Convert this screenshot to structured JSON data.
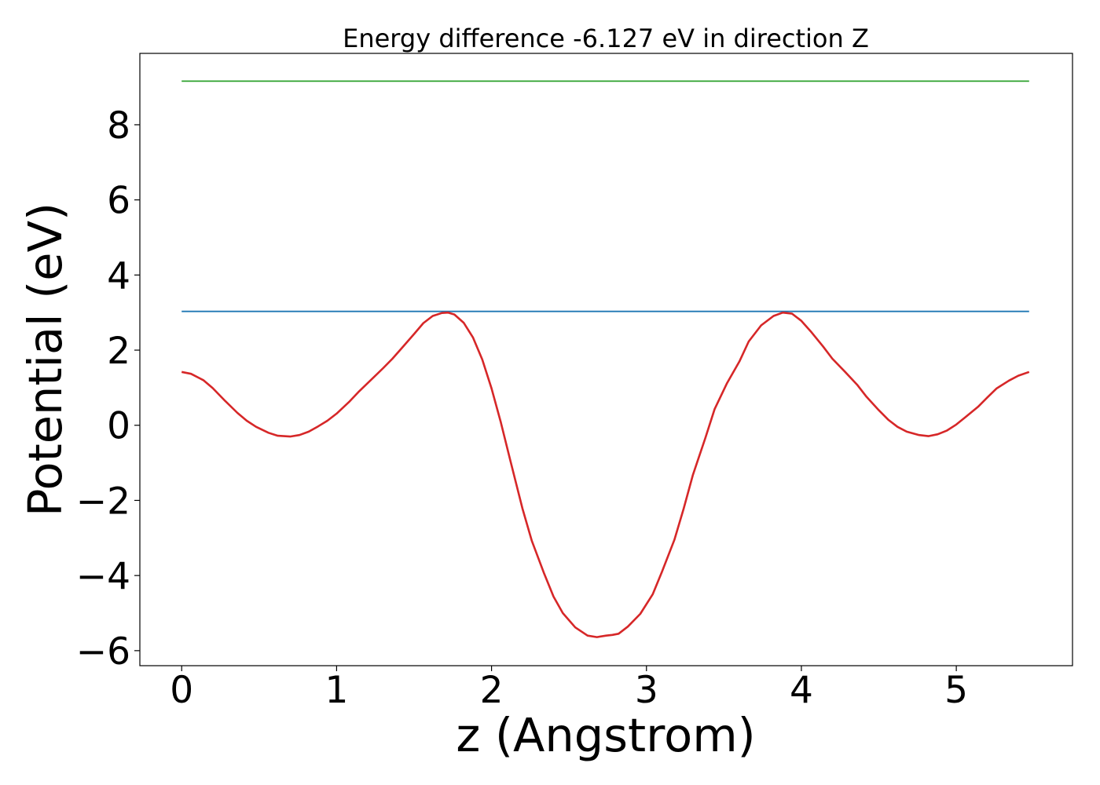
{
  "chart_data": {
    "type": "line",
    "title": "Energy difference -6.127 eV in direction Z",
    "xlabel": "z (Angstrom)",
    "ylabel": "Potential (eV)",
    "xlim": [
      -0.27,
      5.75
    ],
    "ylim": [
      -6.4,
      9.9
    ],
    "xticks": [
      0,
      1,
      2,
      3,
      4,
      5
    ],
    "xtick_labels": [
      "0",
      "1",
      "2",
      "3",
      "4",
      "5"
    ],
    "yticks": [
      -6,
      -4,
      -2,
      0,
      2,
      4,
      6,
      8
    ],
    "ytick_labels": [
      "−6",
      "−4",
      "−2",
      "0",
      "2",
      "4",
      "6",
      "8"
    ],
    "grid": false,
    "legend": "none",
    "series": [
      {
        "color": "#2ca02c",
        "x": [
          0,
          5.47
        ],
        "y": [
          9.16,
          9.16
        ]
      },
      {
        "color": "#1f77b4",
        "x": [
          0,
          5.47
        ],
        "y": [
          3.03,
          3.03
        ]
      },
      {
        "color": "#d62728",
        "x": [
          0.0,
          0.06,
          0.14,
          0.2,
          0.28,
          0.36,
          0.42,
          0.48,
          0.56,
          0.62,
          0.7,
          0.76,
          0.82,
          0.88,
          0.94,
          1.0,
          1.08,
          1.14,
          1.22,
          1.3,
          1.36,
          1.42,
          1.5,
          1.56,
          1.62,
          1.68,
          1.72,
          1.76,
          1.82,
          1.88,
          1.94,
          2.0,
          2.06,
          2.12,
          2.2,
          2.26,
          2.34,
          2.4,
          2.46,
          2.54,
          2.62,
          2.68,
          2.74,
          2.78,
          2.82,
          2.88,
          2.96,
          3.04,
          3.1,
          3.18,
          3.24,
          3.3,
          3.38,
          3.44,
          3.52,
          3.6,
          3.66,
          3.74,
          3.82,
          3.88,
          3.94,
          4.0,
          4.06,
          4.14,
          4.2,
          4.28,
          4.36,
          4.42,
          4.5,
          4.56,
          4.62,
          4.68,
          4.76,
          4.82,
          4.88,
          4.94,
          5.0,
          5.06,
          5.14,
          5.2,
          5.26,
          5.34,
          5.4,
          5.47
        ],
        "y": [
          1.42,
          1.37,
          1.2,
          0.99,
          0.65,
          0.33,
          0.12,
          -0.04,
          -0.2,
          -0.28,
          -0.3,
          -0.26,
          -0.17,
          -0.03,
          0.12,
          0.31,
          0.62,
          0.88,
          1.2,
          1.52,
          1.77,
          2.05,
          2.43,
          2.72,
          2.91,
          2.99,
          3.0,
          2.95,
          2.73,
          2.34,
          1.75,
          0.98,
          0.08,
          -0.92,
          -2.22,
          -3.08,
          -3.95,
          -4.56,
          -5.0,
          -5.38,
          -5.6,
          -5.64,
          -5.6,
          -5.58,
          -5.55,
          -5.36,
          -5.02,
          -4.5,
          -3.9,
          -3.05,
          -2.22,
          -1.32,
          -0.34,
          0.43,
          1.12,
          1.7,
          2.23,
          2.66,
          2.91,
          3.0,
          2.97,
          2.78,
          2.5,
          2.1,
          1.77,
          1.43,
          1.08,
          0.76,
          0.4,
          0.15,
          -0.04,
          -0.17,
          -0.26,
          -0.29,
          -0.24,
          -0.14,
          0.02,
          0.22,
          0.49,
          0.74,
          0.98,
          1.19,
          1.32,
          1.42
        ]
      }
    ]
  }
}
